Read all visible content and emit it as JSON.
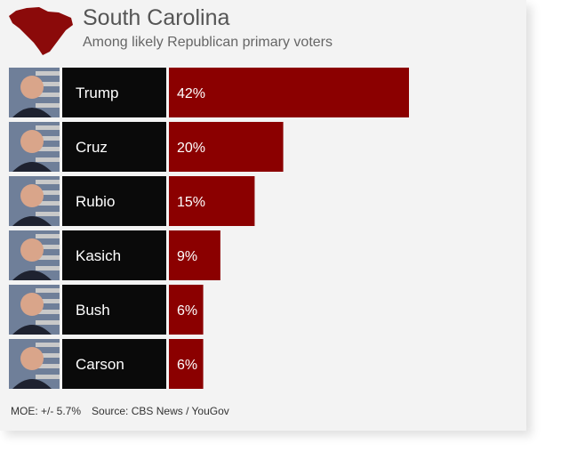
{
  "header": {
    "title": "South Carolina",
    "subtitle": "Among likely Republican primary voters"
  },
  "footer": {
    "moe": "MOE: +/- 5.7%",
    "source": "Source: CBS News / YouGov"
  },
  "colors": {
    "bar": "#8b0000",
    "name_bg": "#0a0a0a",
    "map": "#8b0a0a",
    "text_light": "#ffffff"
  },
  "chart_data": {
    "type": "bar",
    "orientation": "horizontal",
    "title": "South Carolina",
    "subtitle": "Among likely Republican primary voters",
    "categories": [
      "Trump",
      "Cruz",
      "Rubio",
      "Kasich",
      "Bush",
      "Carson"
    ],
    "values": [
      42,
      20,
      15,
      9,
      6,
      6
    ],
    "value_labels": [
      "42%",
      "20%",
      "15%",
      "9%",
      "6%",
      "6%"
    ],
    "unit": "%",
    "xlim": [
      0,
      55
    ],
    "grid": false,
    "legend": "none"
  }
}
